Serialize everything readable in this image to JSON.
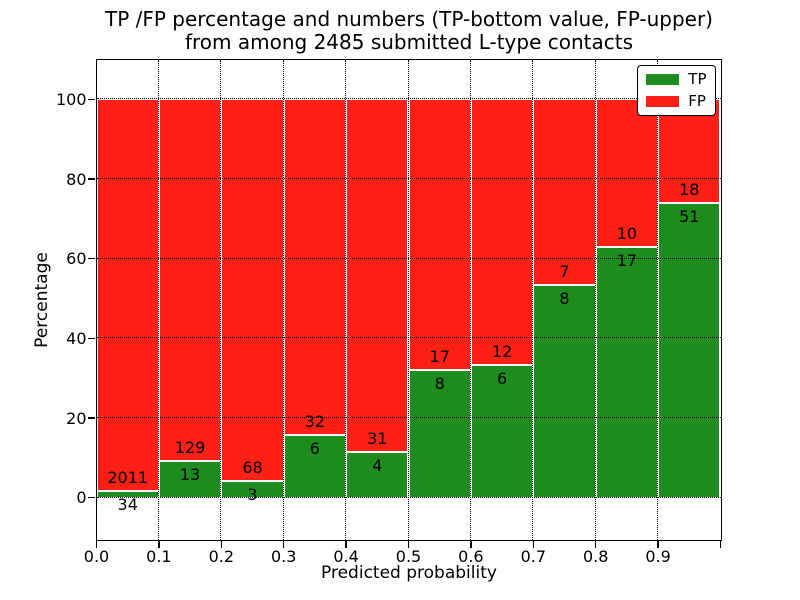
{
  "figure": {
    "title_line1": "TP /FP percentage and numbers (TP-bottom value, FP-upper)",
    "title_line2": "from among 2485 submitted L-type contacts",
    "ylabel": "Percentage",
    "xlabel": "Predicted probability",
    "background_color": "#ffffff"
  },
  "chart_data": {
    "type": "bar",
    "stacked": true,
    "normalized_to_percent": true,
    "title": "TP /FP percentage and numbers (TP-bottom value, FP-upper) from among 2485 submitted L-type contacts",
    "xlabel": "Predicted probability",
    "ylabel": "Percentage",
    "total_contacts": 2485,
    "bins_start": [
      0.0,
      0.1,
      0.2,
      0.3,
      0.4,
      0.5,
      0.6,
      0.7,
      0.8,
      0.9
    ],
    "bin_width": 0.1,
    "xlim": [
      0.0,
      1.0
    ],
    "ylim": [
      -10.5,
      110
    ],
    "xtick_labels": [
      "0.0",
      "0.1",
      "0.2",
      "0.3",
      "0.4",
      "0.5",
      "0.6",
      "0.7",
      "0.8",
      "0.9"
    ],
    "ytick_values": [
      0,
      20,
      40,
      60,
      80,
      100
    ],
    "grid": "dotted",
    "legend_position": "upper right",
    "series": [
      {
        "name": "TP",
        "color": "#1e8c1e",
        "counts": [
          34,
          13,
          3,
          6,
          4,
          8,
          6,
          8,
          17,
          51
        ]
      },
      {
        "name": "FP",
        "color": "#ff2015",
        "counts": [
          2011,
          129,
          68,
          32,
          31,
          17,
          12,
          7,
          10,
          18
        ]
      }
    ],
    "tp_percent_of_bin": [
      1.66,
      9.15,
      4.23,
      15.79,
      11.43,
      32.0,
      33.33,
      53.33,
      62.96,
      73.91
    ]
  }
}
